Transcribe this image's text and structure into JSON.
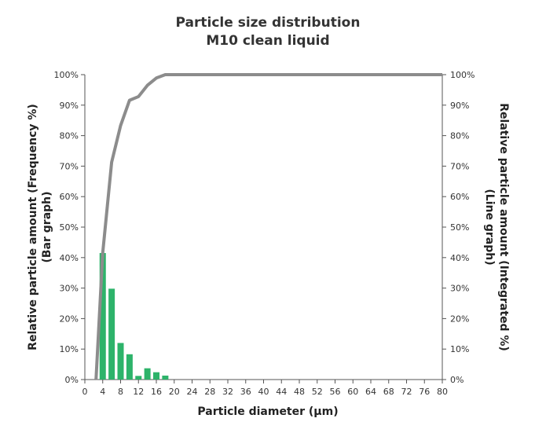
{
  "chart_data": {
    "type": "bar+line",
    "title": "Particle size distribution",
    "subtitle": "M10 clean liquid",
    "xlabel": "Particle diameter (µm)",
    "ylabel_left": [
      "Relative particle amount (Frequency %)",
      "(Bar graph)"
    ],
    "ylabel_right": [
      "Relative particle amount (Integrated %)",
      "(Line graph)"
    ],
    "xlim": [
      0,
      80
    ],
    "ylim": [
      0,
      100
    ],
    "x_ticks": [
      0,
      4,
      8,
      12,
      16,
      20,
      24,
      28,
      32,
      36,
      40,
      44,
      48,
      52,
      56,
      60,
      64,
      68,
      72,
      76,
      80
    ],
    "y_ticks": [
      0,
      10,
      20,
      30,
      40,
      50,
      60,
      70,
      80,
      90,
      100
    ],
    "y_tick_labels": [
      "0%",
      "10%",
      "20%",
      "30%",
      "40%",
      "50%",
      "60%",
      "70%",
      "80%",
      "90%",
      "100%"
    ],
    "grid": false,
    "bars": {
      "name": "Frequency",
      "color": "#2db36a",
      "x": [
        4,
        6,
        8,
        10,
        12,
        14,
        16,
        18
      ],
      "values": [
        41.5,
        29.8,
        12.0,
        8.3,
        1.2,
        3.7,
        2.4,
        1.3
      ]
    },
    "line": {
      "name": "Integrated",
      "color": "#8c8c8c",
      "x": [
        2.5,
        4,
        6,
        8,
        10,
        12,
        14,
        16,
        18,
        20,
        80
      ],
      "values": [
        0,
        41.5,
        71.3,
        83.3,
        91.6,
        92.8,
        96.5,
        98.9,
        100,
        100,
        100
      ]
    }
  }
}
